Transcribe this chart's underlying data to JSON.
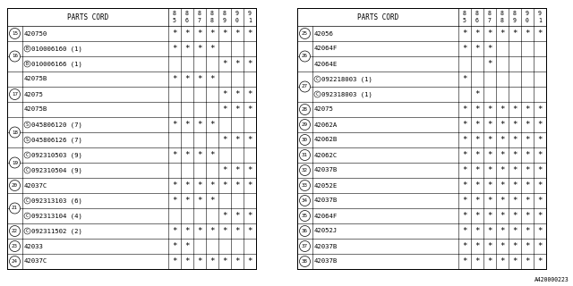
{
  "bg_color": "#ffffff",
  "border_color": "#000000",
  "text_color": "#000000",
  "watermark": "A420000223",
  "years": [
    "8\n5",
    "8\n6",
    "8\n7",
    "8\n8",
    "8\n9",
    "9\n0",
    "9\n1"
  ],
  "year_labels": [
    "85",
    "86",
    "87",
    "88",
    "89",
    "90",
    "91"
  ],
  "left_table": {
    "title": "PARTS CORD",
    "rows": [
      {
        "num": "15",
        "prefix": "",
        "part": "420750",
        "marks": [
          1,
          1,
          1,
          1,
          1,
          1,
          1
        ],
        "group": 0
      },
      {
        "num": "16",
        "prefix": "B",
        "part": "010006160 (1)",
        "marks": [
          1,
          1,
          1,
          1,
          0,
          0,
          0
        ],
        "group": 1
      },
      {
        "num": "16",
        "prefix": "B",
        "part": "010006166 (1)",
        "marks": [
          0,
          0,
          0,
          0,
          1,
          1,
          1
        ],
        "group": 1
      },
      {
        "num": "17",
        "prefix": "",
        "part": "42075B",
        "marks": [
          1,
          1,
          1,
          1,
          0,
          0,
          0
        ],
        "group": 2
      },
      {
        "num": "17",
        "prefix": "",
        "part": "42075",
        "marks": [
          0,
          0,
          0,
          0,
          1,
          1,
          1
        ],
        "group": 2
      },
      {
        "num": "17",
        "prefix": "",
        "part": "42075B",
        "marks": [
          0,
          0,
          0,
          0,
          1,
          1,
          1
        ],
        "group": 2
      },
      {
        "num": "18",
        "prefix": "S",
        "part": "045806120 (7)",
        "marks": [
          1,
          1,
          1,
          1,
          0,
          0,
          0
        ],
        "group": 3
      },
      {
        "num": "18",
        "prefix": "S",
        "part": "045806126 (7)",
        "marks": [
          0,
          0,
          0,
          0,
          1,
          1,
          1
        ],
        "group": 3
      },
      {
        "num": "19",
        "prefix": "C",
        "part": "092310503 (9)",
        "marks": [
          1,
          1,
          1,
          1,
          0,
          0,
          0
        ],
        "group": 4
      },
      {
        "num": "19",
        "prefix": "C",
        "part": "092310504 (9)",
        "marks": [
          0,
          0,
          0,
          0,
          1,
          1,
          1
        ],
        "group": 4
      },
      {
        "num": "20",
        "prefix": "",
        "part": "42037C",
        "marks": [
          1,
          1,
          1,
          1,
          1,
          1,
          1
        ],
        "group": 5
      },
      {
        "num": "21",
        "prefix": "C",
        "part": "092313103 (6)",
        "marks": [
          1,
          1,
          1,
          1,
          0,
          0,
          0
        ],
        "group": 6
      },
      {
        "num": "21",
        "prefix": "C",
        "part": "092313104 (4)",
        "marks": [
          0,
          0,
          0,
          0,
          1,
          1,
          1
        ],
        "group": 6
      },
      {
        "num": "22",
        "prefix": "C",
        "part": "092311502 (2)",
        "marks": [
          1,
          1,
          1,
          1,
          1,
          1,
          1
        ],
        "group": 7
      },
      {
        "num": "23",
        "prefix": "",
        "part": "42033",
        "marks": [
          1,
          1,
          0,
          0,
          0,
          0,
          0
        ],
        "group": 8
      },
      {
        "num": "24",
        "prefix": "",
        "part": "42037C",
        "marks": [
          1,
          1,
          1,
          1,
          1,
          1,
          1
        ],
        "group": 9
      }
    ]
  },
  "right_table": {
    "title": "PARTS CORD",
    "rows": [
      {
        "num": "25",
        "prefix": "",
        "part": "42056",
        "marks": [
          1,
          1,
          1,
          1,
          1,
          1,
          1
        ],
        "group": 0
      },
      {
        "num": "26",
        "prefix": "",
        "part": "42064F",
        "marks": [
          1,
          1,
          1,
          0,
          0,
          0,
          0
        ],
        "group": 1
      },
      {
        "num": "26",
        "prefix": "",
        "part": "42064E",
        "marks": [
          0,
          0,
          1,
          0,
          0,
          0,
          0
        ],
        "group": 1
      },
      {
        "num": "27",
        "prefix": "C",
        "part": "092218003 (1)",
        "marks": [
          1,
          0,
          0,
          0,
          0,
          0,
          0
        ],
        "group": 2
      },
      {
        "num": "27",
        "prefix": "C",
        "part": "092318003 (1)",
        "marks": [
          0,
          1,
          0,
          0,
          0,
          0,
          0
        ],
        "group": 2
      },
      {
        "num": "28",
        "prefix": "",
        "part": "42075",
        "marks": [
          1,
          1,
          1,
          1,
          1,
          1,
          1
        ],
        "group": 3
      },
      {
        "num": "29",
        "prefix": "",
        "part": "42062A",
        "marks": [
          1,
          1,
          1,
          1,
          1,
          1,
          1
        ],
        "group": 4
      },
      {
        "num": "30",
        "prefix": "",
        "part": "42062B",
        "marks": [
          1,
          1,
          1,
          1,
          1,
          1,
          1
        ],
        "group": 5
      },
      {
        "num": "31",
        "prefix": "",
        "part": "42062C",
        "marks": [
          1,
          1,
          1,
          1,
          1,
          1,
          1
        ],
        "group": 6
      },
      {
        "num": "32",
        "prefix": "",
        "part": "42037B",
        "marks": [
          1,
          1,
          1,
          1,
          1,
          1,
          1
        ],
        "group": 7
      },
      {
        "num": "33",
        "prefix": "",
        "part": "42052E",
        "marks": [
          1,
          1,
          1,
          1,
          1,
          1,
          1
        ],
        "group": 8
      },
      {
        "num": "34",
        "prefix": "",
        "part": "42037B",
        "marks": [
          1,
          1,
          1,
          1,
          1,
          1,
          1
        ],
        "group": 9
      },
      {
        "num": "35",
        "prefix": "",
        "part": "42064F",
        "marks": [
          1,
          1,
          1,
          1,
          1,
          1,
          1
        ],
        "group": 10
      },
      {
        "num": "36",
        "prefix": "",
        "part": "42052J",
        "marks": [
          1,
          1,
          1,
          1,
          1,
          1,
          1
        ],
        "group": 11
      },
      {
        "num": "37",
        "prefix": "",
        "part": "42037B",
        "marks": [
          1,
          1,
          1,
          1,
          1,
          1,
          1
        ],
        "group": 12
      },
      {
        "num": "38",
        "prefix": "",
        "part": "42037B",
        "marks": [
          1,
          1,
          1,
          1,
          1,
          1,
          1
        ],
        "group": 13
      }
    ]
  }
}
